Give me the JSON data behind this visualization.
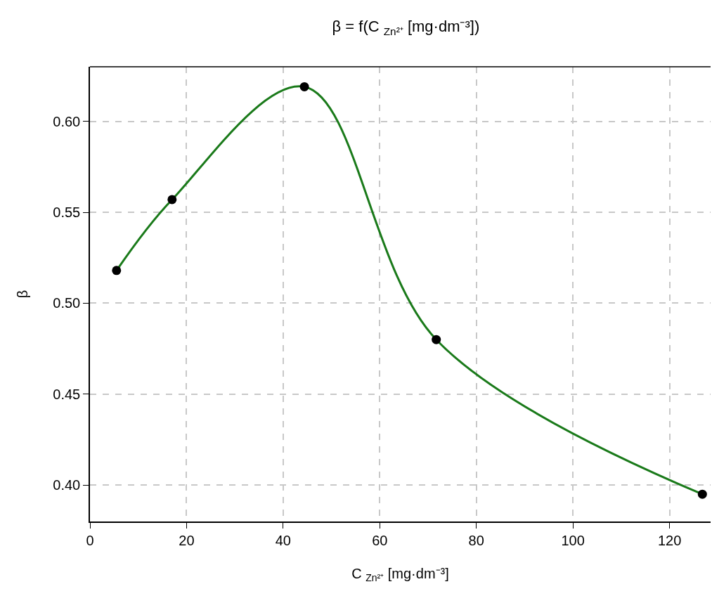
{
  "chart_data": {
    "type": "line",
    "title": "β = f(C $_{Zn²⁺}$ [mg·dm⁻³])",
    "xlabel": "C $_{Zn²⁺}$ [mg·dm⁻³]",
    "ylabel": "β",
    "x": [
      5.5,
      17.0,
      44.4,
      71.7,
      126.8
    ],
    "series": [
      {
        "color": "#1a7a1a",
        "values": [
          0.518,
          0.557,
          0.619,
          0.48,
          0.395
        ],
        "marker": "none"
      },
      {
        "type": "scatter",
        "color": "#000000",
        "values": [
          0.518,
          0.557,
          0.619,
          0.48,
          0.395
        ],
        "marker": "circle"
      }
    ],
    "xlim": [
      0,
      128.5
    ],
    "ylim": [
      0.38,
      0.63
    ],
    "xticks": [
      0,
      20,
      40,
      60,
      80,
      100,
      120
    ],
    "yticks": [
      {
        "value": 0.4,
        "label": "0.40"
      },
      {
        "value": 0.45,
        "label": "0.45"
      },
      {
        "value": 0.5,
        "label": "0.50"
      },
      {
        "value": 0.55,
        "label": "0.55"
      },
      {
        "value": 0.6,
        "label": "0.60"
      }
    ],
    "grid": true
  }
}
